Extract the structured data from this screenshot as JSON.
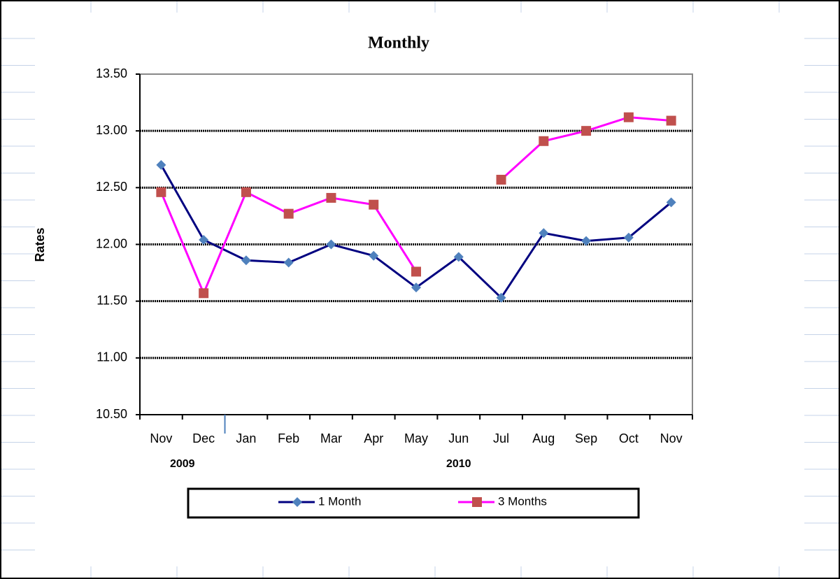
{
  "chart_data": {
    "type": "line",
    "title": "Monthly",
    "y_label": "Rates",
    "categories": [
      "Nov",
      "Dec",
      "Jan",
      "Feb",
      "Mar",
      "Apr",
      "May",
      "Jun",
      "Jul",
      "Aug",
      "Sep",
      "Oct",
      "Nov"
    ],
    "x_groups": [
      {
        "label": "2009",
        "start": 0,
        "end": 1
      },
      {
        "label": "2010",
        "start": 2,
        "end": 12
      }
    ],
    "series": [
      {
        "name": "1 Month",
        "color": "#000080",
        "marker": "diamond",
        "marker_color": "#4f81bd",
        "values": [
          12.7,
          12.04,
          11.86,
          11.84,
          12.0,
          11.9,
          11.62,
          11.89,
          11.53,
          12.1,
          12.03,
          12.06,
          12.37
        ]
      },
      {
        "name": "3 Months",
        "color": "#ff00ff",
        "marker": "square",
        "marker_color": "#c0504d",
        "values": [
          12.46,
          11.57,
          12.46,
          12.27,
          12.41,
          12.35,
          11.76,
          null,
          12.57,
          12.91,
          13.0,
          13.12,
          13.09
        ]
      }
    ],
    "ylim": [
      10.5,
      13.5
    ],
    "yticks": [
      {
        "value": 10.5,
        "label": "10.50"
      },
      {
        "value": 11,
        "label": "11.00"
      },
      {
        "value": 11.5,
        "label": "11.50"
      },
      {
        "value": 12,
        "label": "12.00"
      },
      {
        "value": 12.5,
        "label": "12.50"
      },
      {
        "value": 13,
        "label": "13.00"
      },
      {
        "value": 13.5,
        "label": "13.50"
      }
    ],
    "grid": true,
    "legend": "bottom"
  }
}
